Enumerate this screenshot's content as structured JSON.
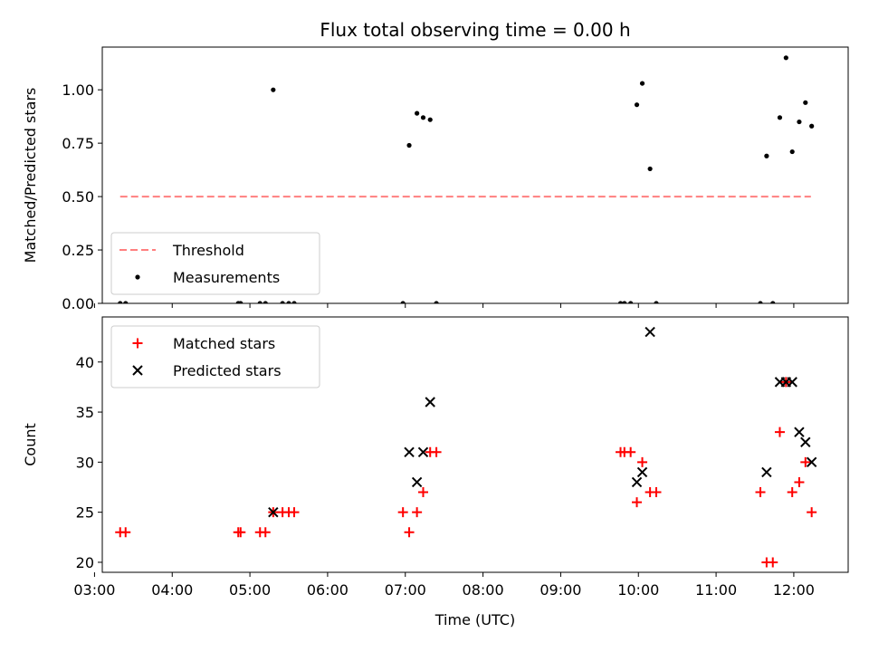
{
  "chart_data": [
    {
      "type": "scatter",
      "title": "Flux total observing time = 0.00 h",
      "ylabel": "Matched/Predicted stars",
      "xlabel": "",
      "ylim": [
        0,
        1.2
      ],
      "yticks": [
        "0.00",
        "0.25",
        "0.50",
        "0.75",
        "1.00"
      ],
      "ytick_values": [
        0,
        0.25,
        0.5,
        0.75,
        1.0
      ],
      "xlim": [
        3.1,
        12.7
      ],
      "x_ticks_hours": [
        3,
        4,
        5,
        6,
        7,
        8,
        9,
        10,
        11,
        12
      ],
      "legend_position": "lower-left",
      "series": [
        {
          "name": "Threshold",
          "style": "dashed-line",
          "color": "#ff7f7f",
          "x": [
            3.33,
            12.22
          ],
          "y": [
            0.5,
            0.5
          ]
        },
        {
          "name": "Measurements",
          "style": "dot",
          "color": "#000000",
          "x": [
            3.33,
            3.4,
            4.85,
            4.88,
            5.13,
            5.2,
            5.3,
            5.42,
            5.5,
            5.57,
            6.97,
            7.05,
            7.15,
            7.23,
            7.32,
            7.4,
            9.77,
            9.82,
            9.9,
            9.98,
            10.05,
            10.15,
            10.23,
            11.57,
            11.65,
            11.73,
            11.82,
            11.9,
            11.98,
            12.07,
            12.15,
            12.23
          ],
          "y": [
            0,
            0,
            0,
            0,
            0,
            0,
            1.0,
            0,
            0,
            0,
            0,
            0.74,
            0.89,
            0.87,
            0.86,
            0,
            0,
            0,
            0,
            0.93,
            1.03,
            0.63,
            0,
            0,
            0.69,
            0,
            0.87,
            1.15,
            0.71,
            0.85,
            0.94,
            0.83
          ]
        }
      ]
    },
    {
      "type": "scatter",
      "title": "",
      "ylabel": "Count",
      "xlabel": "Time (UTC)",
      "ylim": [
        19,
        44.5
      ],
      "yticks": [
        "20",
        "25",
        "30",
        "35",
        "40"
      ],
      "ytick_values": [
        20,
        25,
        30,
        35,
        40
      ],
      "xlim": [
        3.1,
        12.7
      ],
      "xticks": [
        "03:00",
        "04:00",
        "05:00",
        "06:00",
        "07:00",
        "08:00",
        "09:00",
        "10:00",
        "11:00",
        "12:00"
      ],
      "x_ticks_hours": [
        3,
        4,
        5,
        6,
        7,
        8,
        9,
        10,
        11,
        12
      ],
      "legend_position": "upper-left",
      "series": [
        {
          "name": "Matched stars",
          "style": "plus",
          "color": "#ff0000",
          "x": [
            3.33,
            3.4,
            4.85,
            4.88,
            5.13,
            5.2,
            5.3,
            5.42,
            5.5,
            5.57,
            6.97,
            7.05,
            7.15,
            7.23,
            7.32,
            7.4,
            9.77,
            9.82,
            9.9,
            9.98,
            10.05,
            10.15,
            10.23,
            11.57,
            11.65,
            11.73,
            11.82,
            11.9,
            11.98,
            12.07,
            12.15,
            12.23
          ],
          "y": [
            23,
            23,
            23,
            23,
            23,
            23,
            25,
            25,
            25,
            25,
            25,
            23,
            25,
            27,
            31,
            31,
            31,
            31,
            31,
            26,
            30,
            27,
            27,
            27,
            20,
            20,
            33,
            38,
            27,
            28,
            30,
            25
          ]
        },
        {
          "name": "Predicted stars",
          "style": "x",
          "color": "#000000",
          "x": [
            5.3,
            7.05,
            7.15,
            7.23,
            7.32,
            9.98,
            10.05,
            10.15,
            11.65,
            11.82,
            11.9,
            11.98,
            12.07,
            12.15,
            12.23
          ],
          "y": [
            25,
            31,
            28,
            31,
            36,
            28,
            29,
            43,
            29,
            38,
            38,
            38,
            33,
            32,
            30
          ]
        }
      ]
    }
  ]
}
